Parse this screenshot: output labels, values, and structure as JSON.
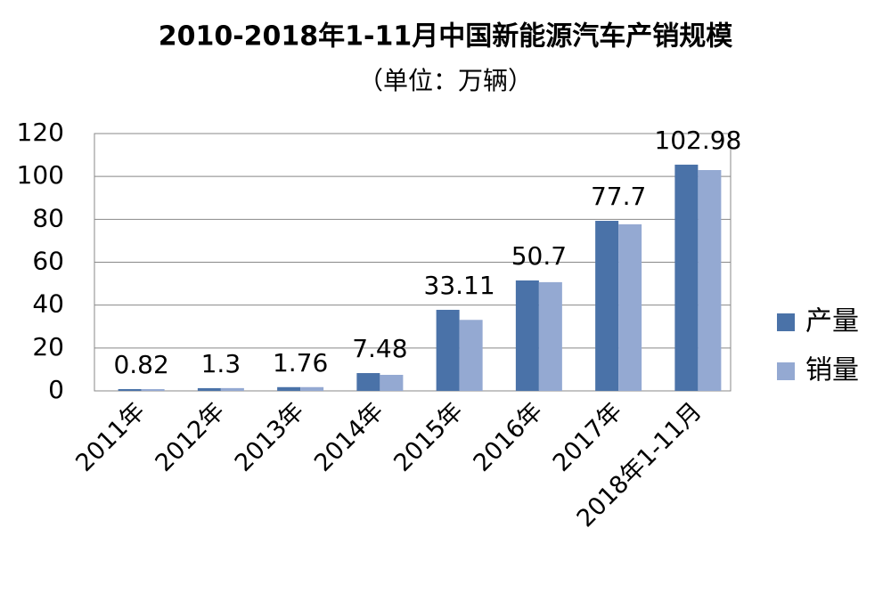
{
  "chart_data": {
    "type": "bar",
    "title": "2010-2018年1-11月中国新能源汽车产销规模",
    "subtitle": "（单位：万辆）",
    "categories": [
      "2011年",
      "2012年",
      "2013年",
      "2014年",
      "2015年",
      "2016年",
      "2017年",
      "2018年1-11月"
    ],
    "series": [
      {
        "name": "产量",
        "color": "#4a72a8",
        "values": [
          0.84,
          1.28,
          1.75,
          8.3,
          37.8,
          51.5,
          79.3,
          105.5
        ]
      },
      {
        "name": "销量",
        "color": "#94a9d2",
        "values": [
          0.82,
          1.3,
          1.76,
          7.48,
          33.11,
          50.7,
          77.7,
          102.98
        ]
      }
    ],
    "labeled_series": 1,
    "ylim": [
      0,
      120
    ],
    "yticks": [
      0,
      20,
      40,
      60,
      80,
      100,
      120
    ],
    "grid": true,
    "legend": "right"
  }
}
